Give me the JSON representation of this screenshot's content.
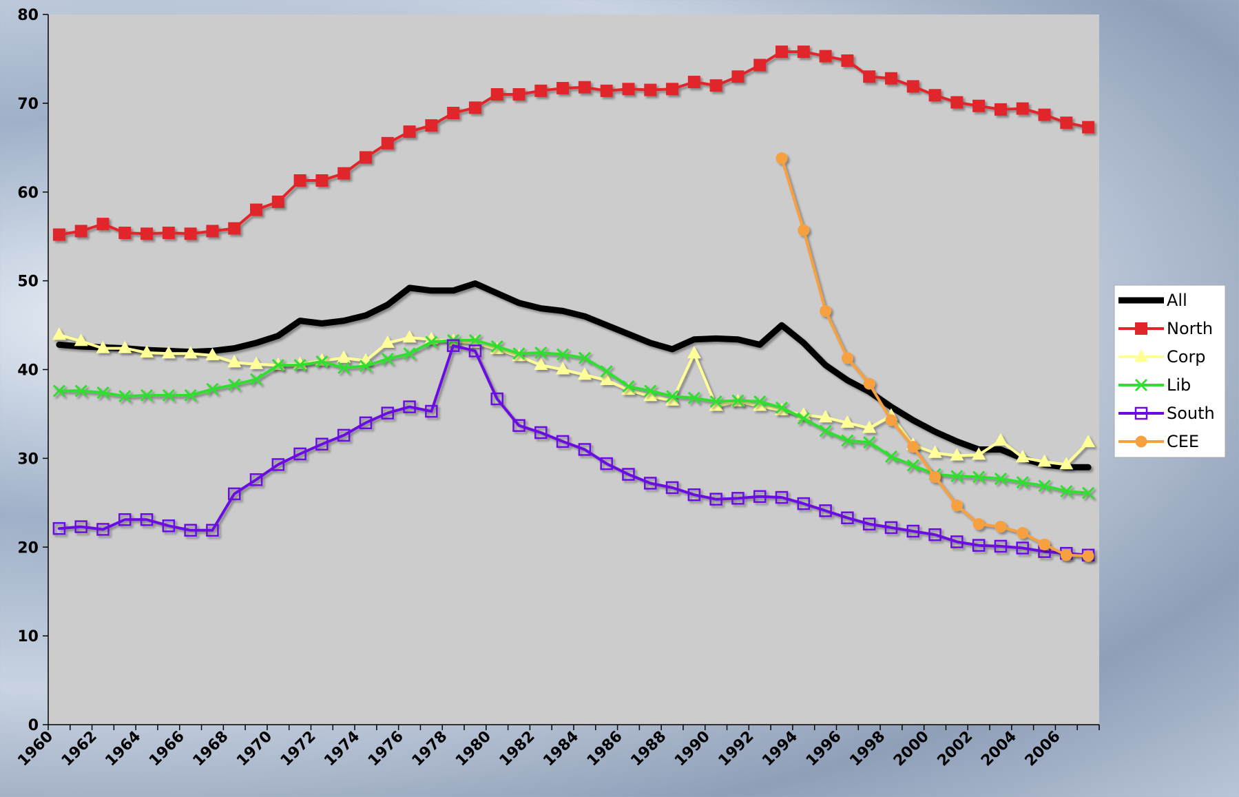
{
  "chart_data": {
    "type": "line",
    "categories": [
      1960,
      null,
      1962,
      null,
      1964,
      null,
      1966,
      null,
      1968,
      null,
      1970,
      null,
      1972,
      null,
      1974,
      null,
      1976,
      null,
      1978,
      null,
      1980,
      null,
      1982,
      null,
      1984,
      null,
      1986,
      null,
      1988,
      null,
      1990,
      null,
      1992,
      null,
      1994,
      null,
      1996,
      null,
      1998,
      null,
      2000,
      null,
      2002,
      null,
      2004,
      null,
      2006,
      null
    ],
    "series": [
      {
        "name": "All",
        "color": "#000000",
        "marker": "none",
        "values": [
          42.8,
          42.6,
          42.5,
          42.4,
          42.2,
          42.1,
          42.0,
          42.1,
          42.4,
          43.0,
          43.8,
          45.5,
          45.2,
          45.5,
          46.1,
          47.3,
          49.2,
          48.9,
          48.9,
          49.7,
          48.6,
          47.5,
          46.9,
          46.6,
          46.0,
          45.0,
          44.0,
          43.0,
          42.3,
          43.4,
          43.5,
          43.4,
          42.8,
          45.0,
          43.0,
          40.5,
          38.8,
          37.5,
          35.8,
          34.3,
          33.0,
          31.9,
          31.0,
          31.0,
          30.0,
          29.3,
          29.0,
          29.0
        ]
      },
      {
        "name": "North",
        "color": "#e0262b",
        "marker": "square",
        "values": [
          55.2,
          55.6,
          56.4,
          55.4,
          55.3,
          55.4,
          55.3,
          55.6,
          55.9,
          58.0,
          58.9,
          61.3,
          61.3,
          62.1,
          63.9,
          65.5,
          66.8,
          67.5,
          68.9,
          69.5,
          71.0,
          71.0,
          71.4,
          71.7,
          71.8,
          71.4,
          71.6,
          71.5,
          71.6,
          72.4,
          72.0,
          73.0,
          74.3,
          75.8,
          75.8,
          75.3,
          74.8,
          73.0,
          72.8,
          71.9,
          70.9,
          70.1,
          69.7,
          69.3,
          69.4,
          68.7,
          67.8,
          67.3
        ]
      },
      {
        "name": "Corp",
        "color": "#ffff99",
        "marker": "triangle",
        "values": [
          43.9,
          43.2,
          42.4,
          42.4,
          41.9,
          41.8,
          41.8,
          41.6,
          40.8,
          40.6,
          40.5,
          40.6,
          41.0,
          41.3,
          41.0,
          43.0,
          43.6,
          43.4,
          43.2,
          43.0,
          42.3,
          41.5,
          40.5,
          40.0,
          39.4,
          38.8,
          37.7,
          37.0,
          36.5,
          41.8,
          35.9,
          36.4,
          35.9,
          35.4,
          34.9,
          34.6,
          34.0,
          33.4,
          34.8,
          31.5,
          30.6,
          30.3,
          30.4,
          32.0,
          30.1,
          29.6,
          29.3,
          31.8
        ]
      },
      {
        "name": "Lib",
        "color": "#33dd33",
        "marker": "x",
        "values": [
          37.6,
          37.6,
          37.4,
          37.0,
          37.1,
          37.1,
          37.1,
          37.8,
          38.3,
          38.9,
          40.5,
          40.5,
          40.9,
          40.2,
          40.4,
          41.2,
          41.8,
          43.1,
          43.3,
          43.3,
          42.6,
          41.8,
          41.9,
          41.7,
          41.3,
          39.8,
          38.1,
          37.6,
          37.0,
          36.8,
          36.4,
          36.5,
          36.4,
          35.7,
          34.5,
          33.1,
          32.0,
          31.8,
          30.2,
          29.2,
          28.2,
          28.0,
          27.9,
          27.7,
          27.3,
          26.9,
          26.3,
          26.1
        ]
      },
      {
        "name": "South",
        "color": "#6a0ae0",
        "marker": "square-open",
        "values": [
          22.1,
          22.3,
          22.0,
          23.1,
          23.1,
          22.4,
          21.9,
          21.9,
          26.0,
          27.6,
          29.3,
          30.5,
          31.6,
          32.6,
          34.0,
          35.1,
          35.8,
          35.3,
          42.7,
          42.1,
          36.7,
          33.7,
          32.9,
          31.9,
          31.0,
          29.4,
          28.2,
          27.2,
          26.7,
          25.9,
          25.4,
          25.5,
          25.7,
          25.6,
          24.9,
          24.1,
          23.3,
          22.6,
          22.2,
          21.8,
          21.4,
          20.6,
          20.2,
          20.1,
          19.9,
          19.5,
          19.3,
          19.1
        ]
      },
      {
        "name": "CEE",
        "color": "#f7a040",
        "marker": "circle",
        "values": [
          null,
          null,
          null,
          null,
          null,
          null,
          null,
          null,
          null,
          null,
          null,
          null,
          null,
          null,
          null,
          null,
          null,
          null,
          null,
          null,
          null,
          null,
          null,
          null,
          null,
          null,
          null,
          null,
          null,
          null,
          null,
          null,
          null,
          63.8,
          55.7,
          46.6,
          41.3,
          38.4,
          34.3,
          31.3,
          27.9,
          24.7,
          22.6,
          22.3,
          21.6,
          20.3,
          19.1,
          19.0
        ]
      }
    ],
    "ylim": [
      0,
      80
    ],
    "yticks": [
      0,
      10,
      20,
      30,
      40,
      50,
      60,
      70,
      80
    ],
    "grid": false,
    "legend": "right"
  }
}
